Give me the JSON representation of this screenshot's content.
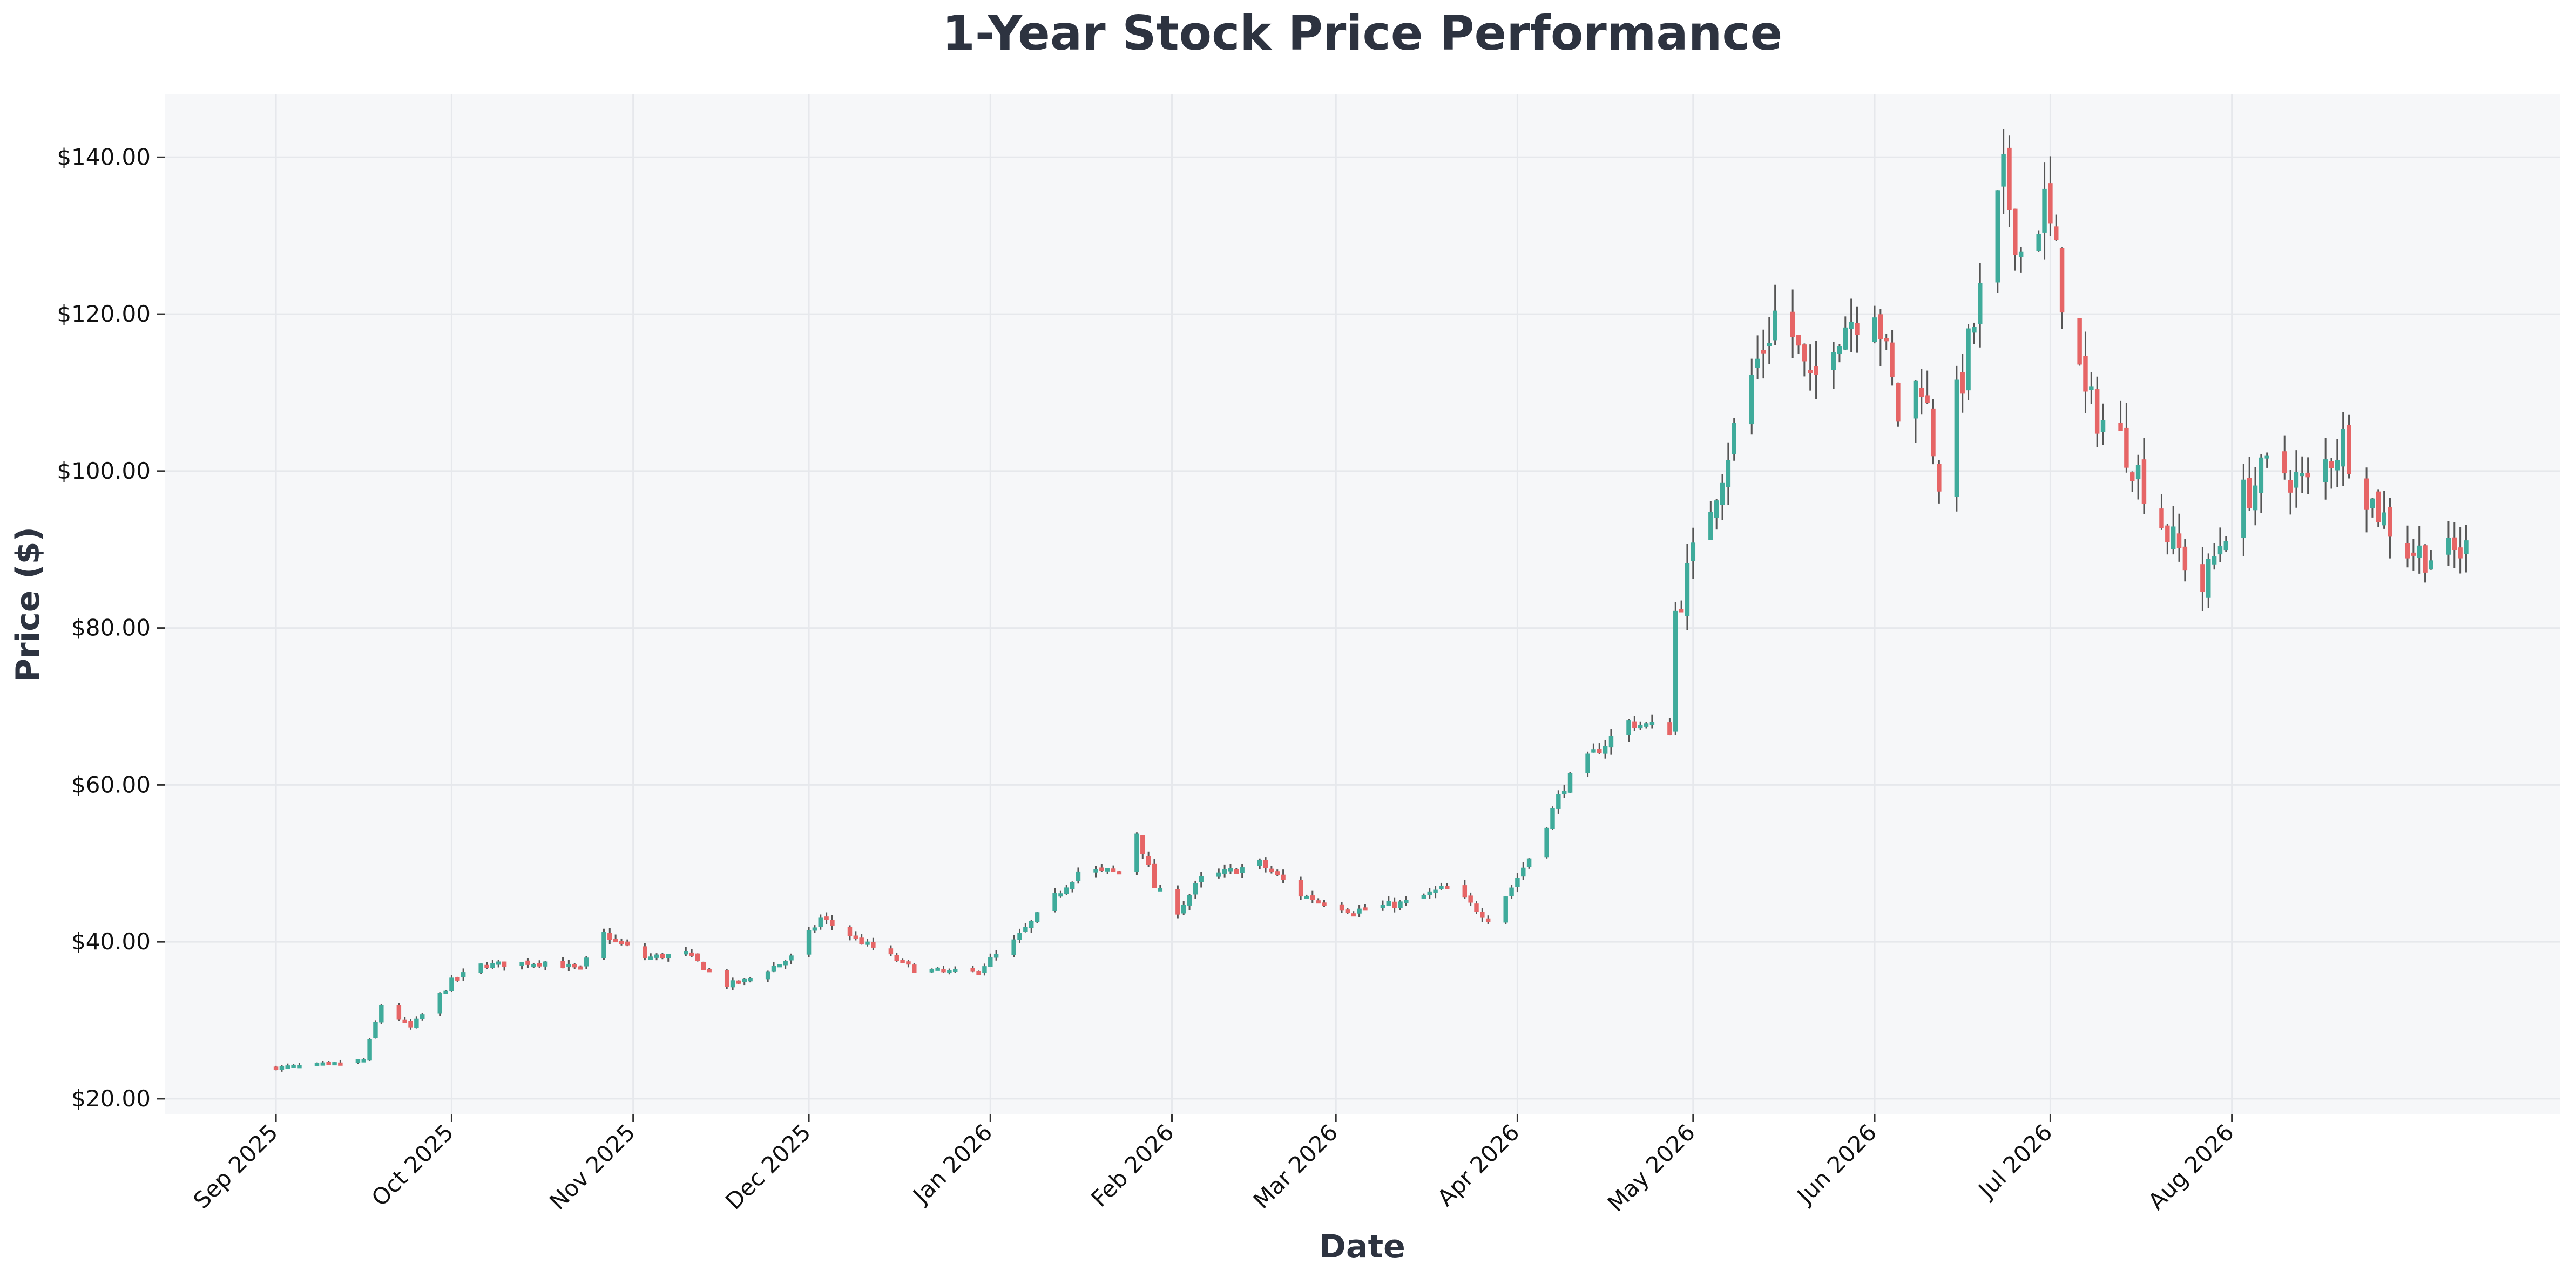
{
  "chart_data": {
    "type": "candlestick",
    "title": "1-Year Stock Price Performance",
    "xlabel": "Date",
    "ylabel": "Price ($)",
    "ylim": [
      18,
      148
    ],
    "y_ticks": [
      20,
      40,
      60,
      80,
      100,
      120,
      140
    ],
    "y_tick_labels": [
      "$20.00",
      "$40.00",
      "$60.00",
      "$80.00",
      "$100.00",
      "$120.00",
      "$140.00"
    ],
    "x_ticks": [
      "2025-09-01",
      "2025-10-01",
      "2025-11-01",
      "2025-12-01",
      "2026-01-01",
      "2026-02-01",
      "2026-03-01",
      "2026-04-01",
      "2026-05-01",
      "2026-06-01",
      "2026-07-01",
      "2026-08-01"
    ],
    "x_tick_labels": [
      "Sep 2025",
      "Oct 2025",
      "Nov 2025",
      "Dec 2025",
      "Jan 2026",
      "Feb 2026",
      "Mar 2026",
      "Apr 2026",
      "May 2026",
      "Jun 2026",
      "Jul 2026",
      "Aug 2026"
    ],
    "xlim": [
      "2025-08-13",
      "2026-09-26"
    ],
    "grid": true,
    "colors": {
      "up": "#3fab9b",
      "down": "#e66566",
      "wick": "#555555",
      "plot_bg": "#f6f7f9",
      "grid": "#e6e8ec"
    },
    "anchors": [
      [
        "2025-09-01",
        24
      ],
      [
        "2025-09-12",
        24.5
      ],
      [
        "2025-09-16",
        25
      ],
      [
        "2025-09-19",
        32
      ],
      [
        "2025-09-24",
        29
      ],
      [
        "2025-10-01",
        35
      ],
      [
        "2025-10-06",
        37
      ],
      [
        "2025-10-17",
        37.5
      ],
      [
        "2025-10-23",
        36.5
      ],
      [
        "2025-10-27",
        41
      ],
      [
        "2025-11-03",
        38
      ],
      [
        "2025-11-10",
        38.5
      ],
      [
        "2025-11-17",
        34.5
      ],
      [
        "2025-11-20",
        35
      ],
      [
        "2025-11-28",
        38
      ],
      [
        "2025-12-03",
        43
      ],
      [
        "2025-12-10",
        40
      ],
      [
        "2025-12-19",
        36.5
      ],
      [
        "2025-12-29",
        36
      ],
      [
        "2026-01-05",
        40
      ],
      [
        "2026-01-16",
        49
      ],
      [
        "2026-01-23",
        49
      ],
      [
        "2026-01-26",
        54
      ],
      [
        "2026-01-29",
        47
      ],
      [
        "2026-02-02",
        44
      ],
      [
        "2026-02-06",
        48
      ],
      [
        "2026-02-16",
        50
      ],
      [
        "2026-02-23",
        46
      ],
      [
        "2026-03-04",
        44
      ],
      [
        "2026-03-13",
        45
      ],
      [
        "2026-03-20",
        47
      ],
      [
        "2026-03-27",
        43
      ],
      [
        "2026-03-31",
        47
      ],
      [
        "2026-04-04",
        52
      ],
      [
        "2026-04-09",
        60
      ],
      [
        "2026-04-14",
        64
      ],
      [
        "2026-04-20",
        68
      ],
      [
        "2026-04-27",
        67
      ],
      [
        "2026-04-28",
        82
      ],
      [
        "2026-05-04",
        96
      ],
      [
        "2026-05-11",
        112
      ],
      [
        "2026-05-16",
        122
      ],
      [
        "2026-05-21",
        110
      ],
      [
        "2026-05-25",
        118
      ],
      [
        "2026-06-01",
        122
      ],
      [
        "2026-06-05",
        107
      ],
      [
        "2026-06-09",
        112
      ],
      [
        "2026-06-12",
        99
      ],
      [
        "2026-06-19",
        122
      ],
      [
        "2026-06-23",
        137
      ],
      [
        "2026-06-26",
        128
      ],
      [
        "2026-06-30",
        134
      ],
      [
        "2026-07-03",
        123
      ],
      [
        "2026-07-07",
        109
      ],
      [
        "2026-07-14",
        103
      ],
      [
        "2026-07-21",
        92
      ],
      [
        "2026-07-27",
        85
      ],
      [
        "2026-08-01",
        95
      ],
      [
        "2026-08-08",
        101
      ],
      [
        "2026-08-14",
        98
      ],
      [
        "2026-08-20",
        104
      ],
      [
        "2026-08-25",
        96
      ],
      [
        "2026-08-31",
        90
      ],
      [
        "2026-09-06",
        89
      ],
      [
        "2026-09-10",
        90
      ]
    ]
  }
}
